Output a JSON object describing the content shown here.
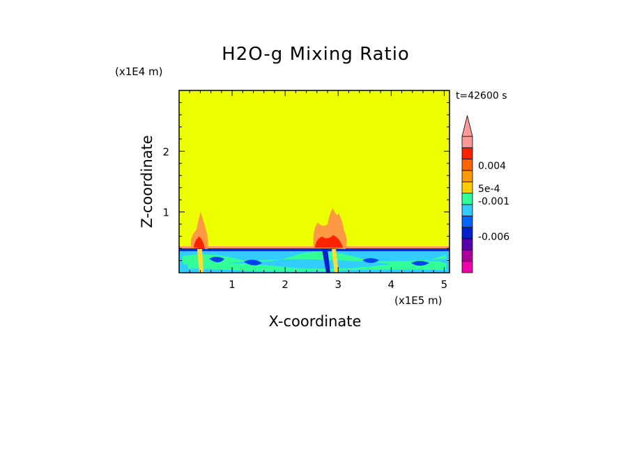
{
  "chart_data": {
    "type": "heatmap",
    "title": "H2O-g Mixing Ratio",
    "xlabel": "X-coordinate",
    "ylabel": "Z-coordinate",
    "x_scale_note": "(x1E5 m)",
    "y_scale_note": "(x1E4 m)",
    "time_label": "t=42600 s",
    "xlim": [
      0,
      5.1
    ],
    "ylim": [
      0,
      3.0
    ],
    "xticks": [
      "1",
      "2",
      "3",
      "4",
      "5"
    ],
    "yticks": [
      "1",
      "2"
    ],
    "colorbar": {
      "labels": [
        "0.004",
        "5e-4",
        "-0.001",
        "-0.006"
      ],
      "colors": [
        "#ee00aa",
        "#aa0099",
        "#5500aa",
        "#0022cc",
        "#0066ff",
        "#33ccff",
        "#33ff99",
        "#ffcc00",
        "#ff9900",
        "#ff6600",
        "#ff2200",
        "#ff9999"
      ]
    },
    "background_color": "#eeff00"
  }
}
